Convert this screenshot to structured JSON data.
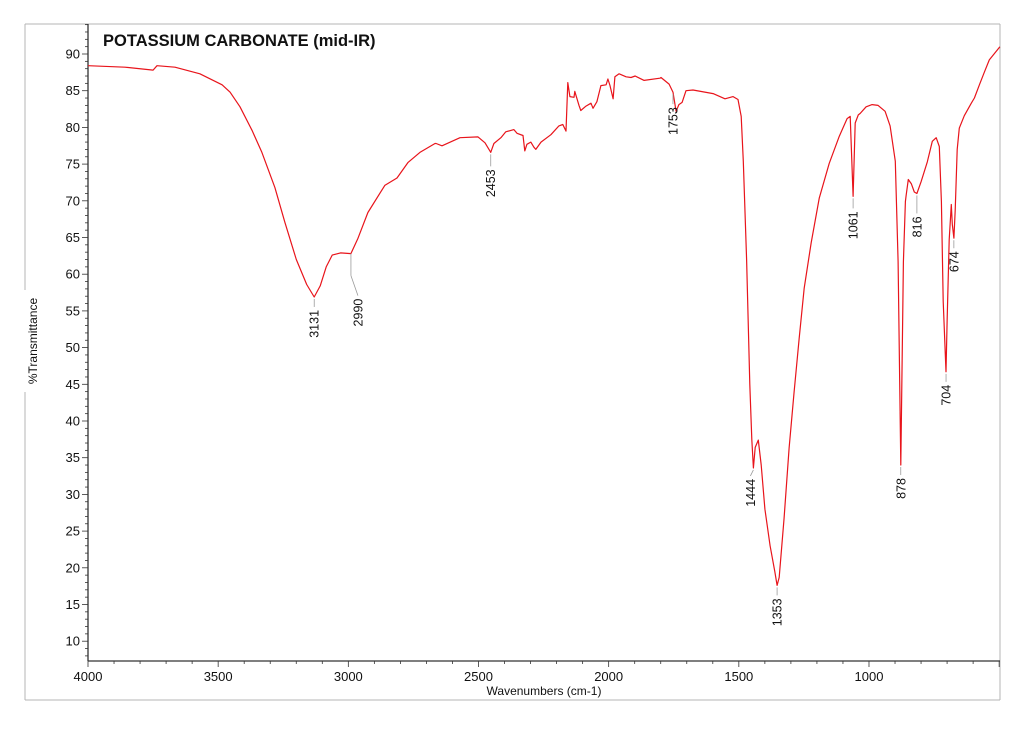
{
  "chart_data": {
    "type": "line",
    "title": "POTASSIUM CARBONATE (mid-IR)",
    "xlabel": "Wavenumbers (cm-1)",
    "ylabel": "%Transmittance",
    "xlim": [
      4000,
      497
    ],
    "ylim": [
      7.3,
      94.1
    ],
    "x_reversed": true,
    "grid": false,
    "legend": null,
    "x_ticks": [
      4000,
      3500,
      3000,
      2500,
      2000,
      1500,
      1000
    ],
    "y_ticks": [
      10,
      15,
      20,
      25,
      30,
      35,
      40,
      45,
      50,
      55,
      60,
      65,
      70,
      75,
      80,
      85,
      90
    ],
    "series": [
      {
        "name": "Potassium carbonate",
        "color": "#e8141b",
        "points": [
          [
            4000,
            88.4
          ],
          [
            3858,
            88.2
          ],
          [
            3750,
            87.8
          ],
          [
            3735,
            88.4
          ],
          [
            3666,
            88.2
          ],
          [
            3570,
            87.3
          ],
          [
            3485,
            85.8
          ],
          [
            3454,
            84.8
          ],
          [
            3416,
            82.8
          ],
          [
            3370,
            79.6
          ],
          [
            3332,
            76.6
          ],
          [
            3282,
            71.8
          ],
          [
            3244,
            67.1
          ],
          [
            3200,
            62.0
          ],
          [
            3160,
            58.6
          ],
          [
            3131,
            56.9
          ],
          [
            3108,
            58.4
          ],
          [
            3085,
            61.0
          ],
          [
            3062,
            62.6
          ],
          [
            3030,
            62.9
          ],
          [
            2990,
            62.8
          ],
          [
            2963,
            64.9
          ],
          [
            2925,
            68.4
          ],
          [
            2860,
            72.1
          ],
          [
            2813,
            73.1
          ],
          [
            2771,
            75.2
          ],
          [
            2725,
            76.6
          ],
          [
            2667,
            77.8
          ],
          [
            2663,
            77.8
          ],
          [
            2640,
            77.5
          ],
          [
            2571,
            78.6
          ],
          [
            2502,
            78.7
          ],
          [
            2475,
            77.9
          ],
          [
            2456,
            76.8
          ],
          [
            2453,
            76.6
          ],
          [
            2441,
            77.8
          ],
          [
            2414,
            78.6
          ],
          [
            2395,
            79.4
          ],
          [
            2364,
            79.7
          ],
          [
            2352,
            79.2
          ],
          [
            2329,
            78.9
          ],
          [
            2322,
            76.8
          ],
          [
            2314,
            77.7
          ],
          [
            2299,
            78.0
          ],
          [
            2287,
            77.3
          ],
          [
            2280,
            77.0
          ],
          [
            2260,
            78.0
          ],
          [
            2222,
            79.0
          ],
          [
            2191,
            80.2
          ],
          [
            2176,
            80.4
          ],
          [
            2164,
            79.5
          ],
          [
            2157,
            86.1
          ],
          [
            2149,
            84.2
          ],
          [
            2133,
            84.1
          ],
          [
            2130,
            84.9
          ],
          [
            2114,
            83.0
          ],
          [
            2107,
            82.3
          ],
          [
            2087,
            82.9
          ],
          [
            2068,
            83.3
          ],
          [
            2060,
            82.6
          ],
          [
            2045,
            83.5
          ],
          [
            2030,
            85.7
          ],
          [
            2010,
            85.8
          ],
          [
            2003,
            86.6
          ],
          [
            1995,
            85.7
          ],
          [
            1983,
            83.9
          ],
          [
            1976,
            86.9
          ],
          [
            1960,
            87.3
          ],
          [
            1933,
            86.9
          ],
          [
            1914,
            86.8
          ],
          [
            1898,
            87.0
          ],
          [
            1864,
            86.4
          ],
          [
            1803,
            86.7
          ],
          [
            1799,
            86.8
          ],
          [
            1768,
            85.9
          ],
          [
            1753,
            84.8
          ],
          [
            1741,
            82.2
          ],
          [
            1730,
            83.1
          ],
          [
            1718,
            83.4
          ],
          [
            1703,
            85.0
          ],
          [
            1676,
            85.1
          ],
          [
            1599,
            84.6
          ],
          [
            1553,
            83.9
          ],
          [
            1522,
            84.2
          ],
          [
            1503,
            83.8
          ],
          [
            1491,
            81.5
          ],
          [
            1483,
            75.4
          ],
          [
            1470,
            62.0
          ],
          [
            1458,
            45.0
          ],
          [
            1450,
            37.5
          ],
          [
            1444,
            33.6
          ],
          [
            1437,
            36.4
          ],
          [
            1425,
            37.4
          ],
          [
            1414,
            34.0
          ],
          [
            1400,
            28.0
          ],
          [
            1380,
            23.0
          ],
          [
            1362,
            19.5
          ],
          [
            1353,
            17.6
          ],
          [
            1345,
            18.7
          ],
          [
            1326,
            26.8
          ],
          [
            1307,
            36.3
          ],
          [
            1288,
            43.8
          ],
          [
            1268,
            51.3
          ],
          [
            1249,
            58.1
          ],
          [
            1222,
            64.3
          ],
          [
            1191,
            70.4
          ],
          [
            1153,
            75.1
          ],
          [
            1114,
            78.8
          ],
          [
            1084,
            81.2
          ],
          [
            1072,
            81.5
          ],
          [
            1061,
            70.6
          ],
          [
            1053,
            80.6
          ],
          [
            1041,
            81.7
          ],
          [
            1034,
            81.9
          ],
          [
            1011,
            82.8
          ],
          [
            988,
            83.1
          ],
          [
            965,
            83.0
          ],
          [
            938,
            82.2
          ],
          [
            919,
            80.2
          ],
          [
            899,
            75.4
          ],
          [
            888,
            61.7
          ],
          [
            878,
            34.0
          ],
          [
            868,
            61.7
          ],
          [
            860,
            69.9
          ],
          [
            857,
            70.8
          ],
          [
            849,
            72.9
          ],
          [
            837,
            72.3
          ],
          [
            826,
            71.2
          ],
          [
            816,
            71.0
          ],
          [
            800,
            72.6
          ],
          [
            776,
            75.3
          ],
          [
            757,
            78.1
          ],
          [
            742,
            78.6
          ],
          [
            730,
            77.4
          ],
          [
            722,
            69.9
          ],
          [
            715,
            56.3
          ],
          [
            704,
            46.7
          ],
          [
            700,
            53.5
          ],
          [
            692,
            64.7
          ],
          [
            684,
            69.5
          ],
          [
            680,
            66.8
          ],
          [
            674,
            64.9
          ],
          [
            669,
            68.7
          ],
          [
            661,
            77.0
          ],
          [
            653,
            79.9
          ],
          [
            634,
            81.6
          ],
          [
            607,
            83.3
          ],
          [
            595,
            84.0
          ],
          [
            576,
            85.8
          ],
          [
            557,
            87.5
          ],
          [
            538,
            89.2
          ],
          [
            497,
            91.0
          ]
        ]
      }
    ],
    "annotations": [
      {
        "label": "3131",
        "x": 3131,
        "y": 56.9
      },
      {
        "label": "2990",
        "x": 2990,
        "y": 62.8
      },
      {
        "label": "2453",
        "x": 2453,
        "y": 76.6
      },
      {
        "label": "1753",
        "x": 1753,
        "y": 84.8
      },
      {
        "label": "1444",
        "x": 1444,
        "y": 33.6
      },
      {
        "label": "1353",
        "x": 1353,
        "y": 17.6
      },
      {
        "label": "1061",
        "x": 1061,
        "y": 70.6
      },
      {
        "label": "878",
        "x": 878,
        "y": 34.0
      },
      {
        "label": "816",
        "x": 816,
        "y": 71.0
      },
      {
        "label": "704",
        "x": 704,
        "y": 46.7
      },
      {
        "label": "674",
        "x": 674,
        "y": 64.9
      }
    ]
  },
  "colors": {
    "trace": "#e8141b",
    "axis": "#333333",
    "frame": "#b4b4b4",
    "leader": "#9a9a9a",
    "text": "#111111"
  }
}
